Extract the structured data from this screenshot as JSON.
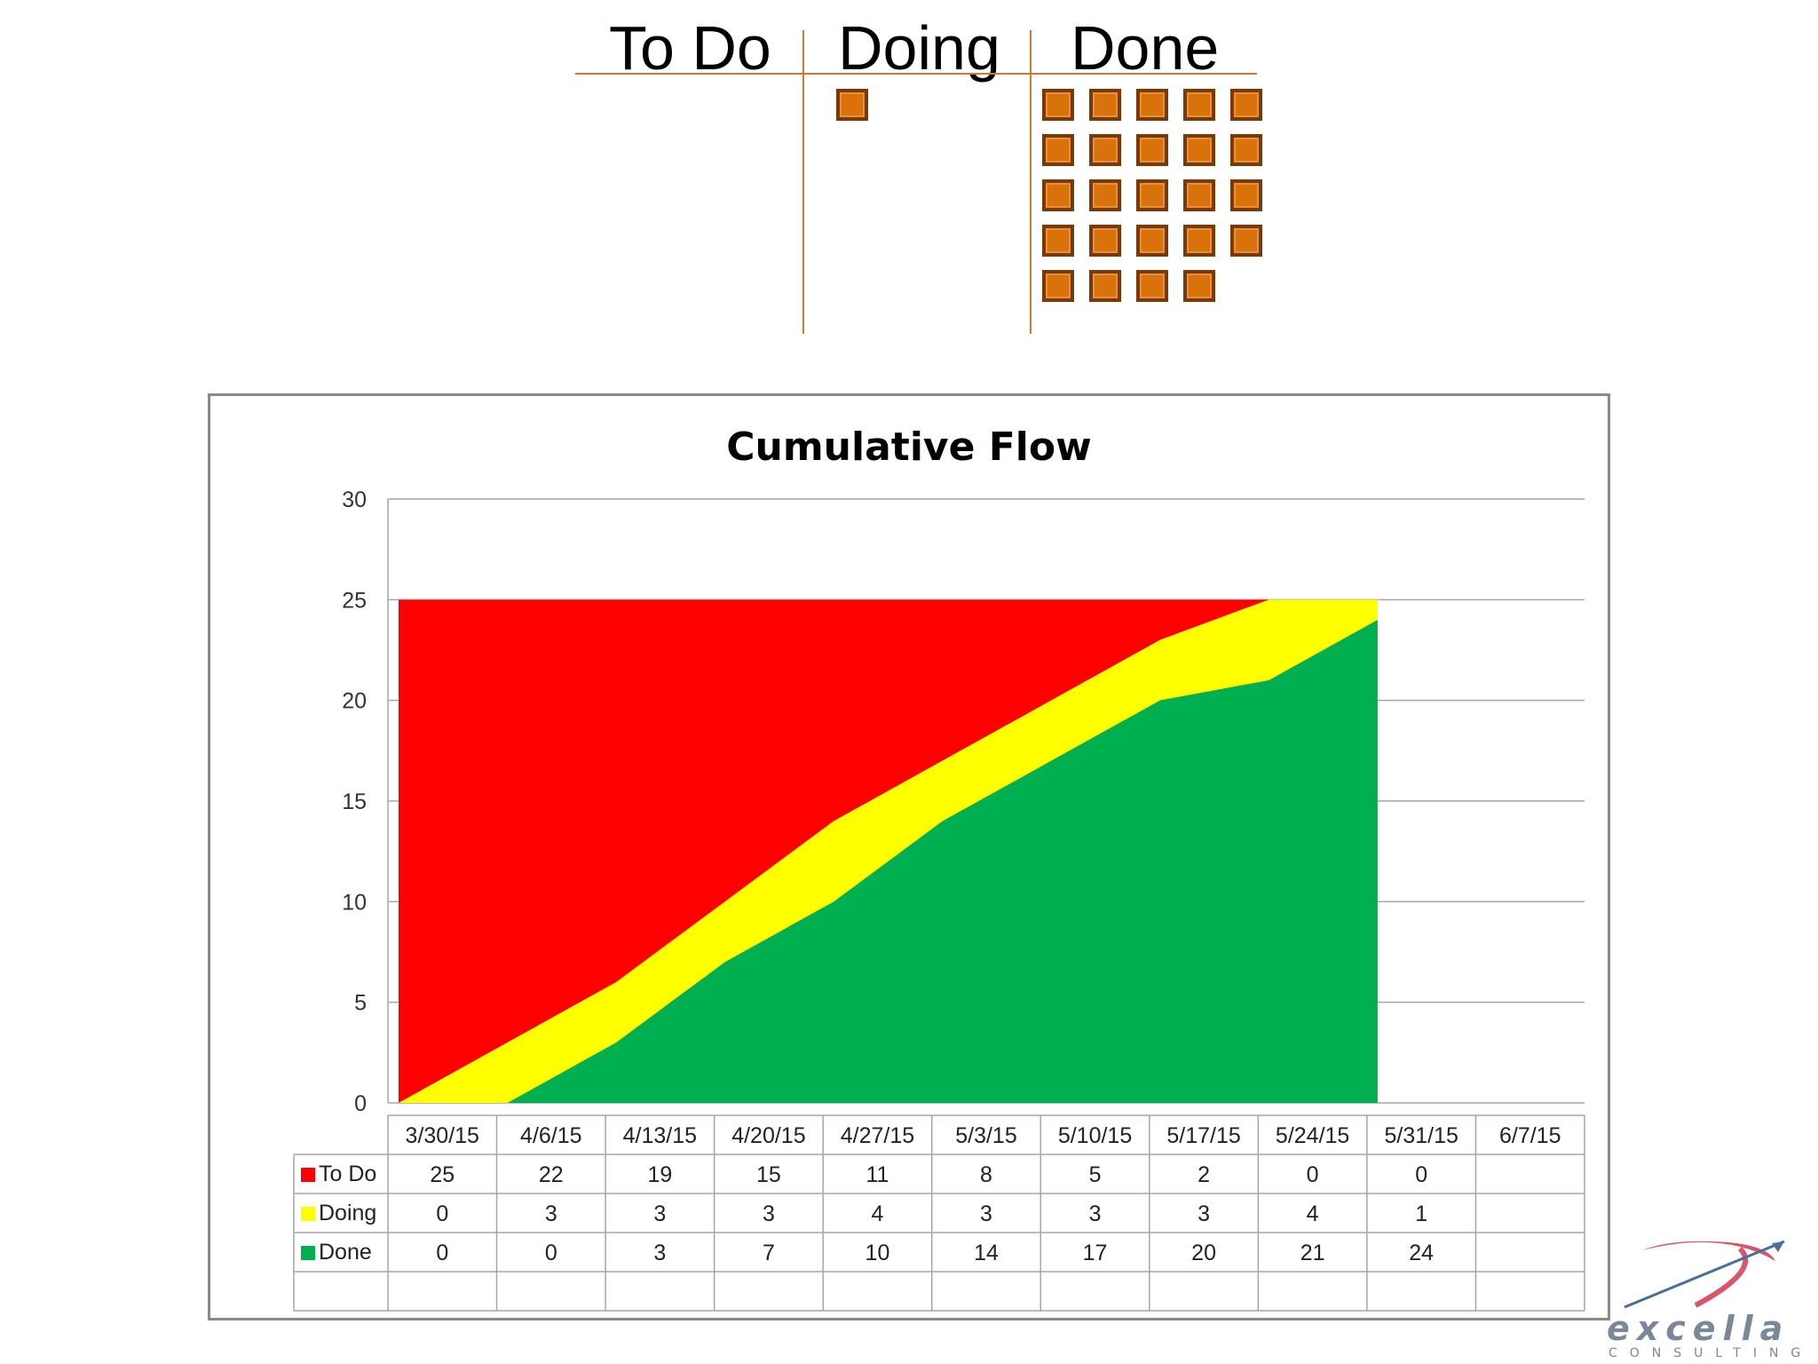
{
  "board": {
    "columns": [
      {
        "label": "To Do",
        "card_count": 0
      },
      {
        "label": "Doing",
        "card_count": 1
      },
      {
        "label": "Done",
        "card_count": 24
      }
    ]
  },
  "colors": {
    "todo": "#ff0000",
    "doing": "#ffff00",
    "done": "#00b050",
    "card": "#d9720a"
  },
  "chart_data": {
    "type": "area",
    "title": "Cumulative Flow",
    "categories": [
      "3/30/15",
      "4/6/15",
      "4/13/15",
      "4/20/15",
      "4/27/15",
      "5/3/15",
      "5/10/15",
      "5/17/15",
      "5/24/15",
      "5/31/15",
      "6/7/15"
    ],
    "series": [
      {
        "name": "To Do",
        "color": "#ff0000",
        "values": [
          25,
          22,
          19,
          15,
          11,
          8,
          5,
          2,
          0,
          0,
          null
        ]
      },
      {
        "name": "Doing",
        "color": "#ffff00",
        "values": [
          0,
          3,
          3,
          3,
          4,
          3,
          3,
          3,
          4,
          1,
          null
        ]
      },
      {
        "name": "Done",
        "color": "#00b050",
        "values": [
          0,
          0,
          3,
          7,
          10,
          14,
          17,
          20,
          21,
          24,
          null
        ]
      }
    ],
    "stacked": true,
    "ylim": [
      0,
      30
    ],
    "yticks": [
      0,
      5,
      10,
      15,
      20,
      25,
      30
    ],
    "grid": true,
    "legend": "data-table"
  },
  "logo": {
    "word": "excella",
    "sub": "CONSULTING"
  }
}
